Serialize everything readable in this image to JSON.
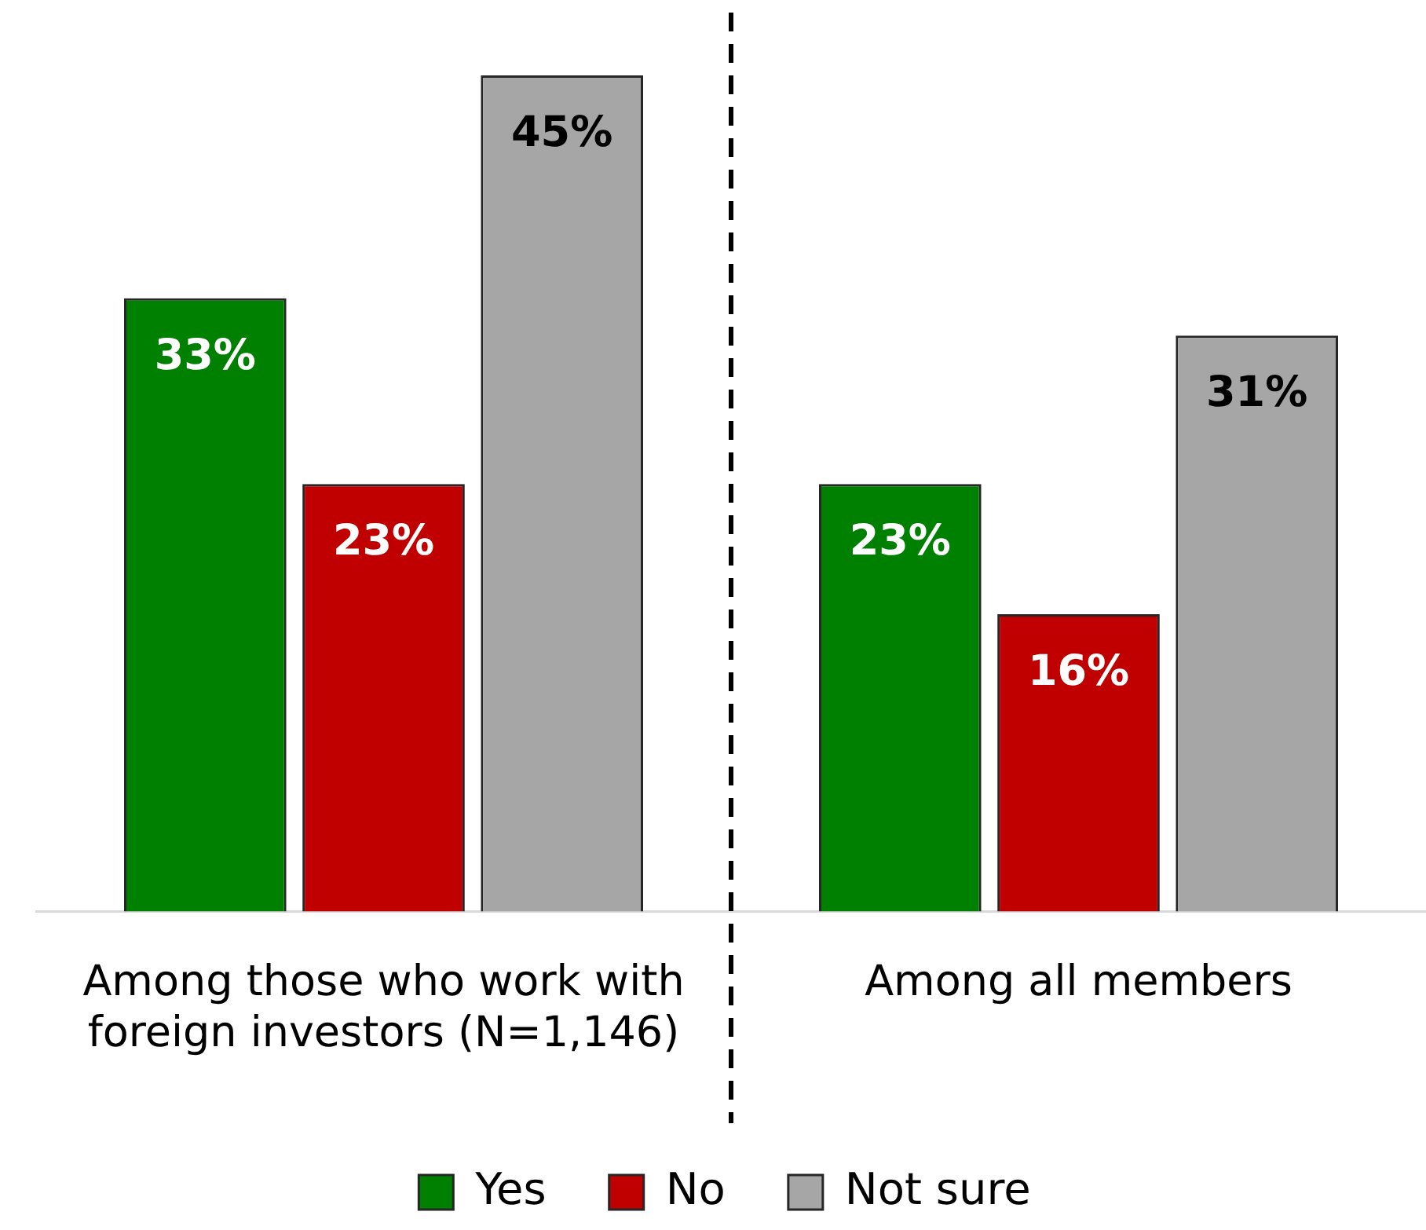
{
  "chart_data": {
    "type": "bar",
    "categories": [
      "Among those who work with foreign investors (N=1,146)",
      "Among all members"
    ],
    "series": [
      {
        "name": "Yes",
        "color": "#008000",
        "values": [
          33,
          23
        ],
        "value_labels": [
          "33%",
          "23%"
        ]
      },
      {
        "name": "No",
        "color": "#c00000",
        "values": [
          23,
          16
        ],
        "value_labels": [
          "23%",
          "16%"
        ]
      },
      {
        "name": "Not sure",
        "color": "#a6a6a6",
        "values": [
          45,
          31
        ],
        "value_labels": [
          "45%",
          "31%"
        ]
      }
    ],
    "relative": false,
    "grid": false,
    "legend": "bottom"
  }
}
